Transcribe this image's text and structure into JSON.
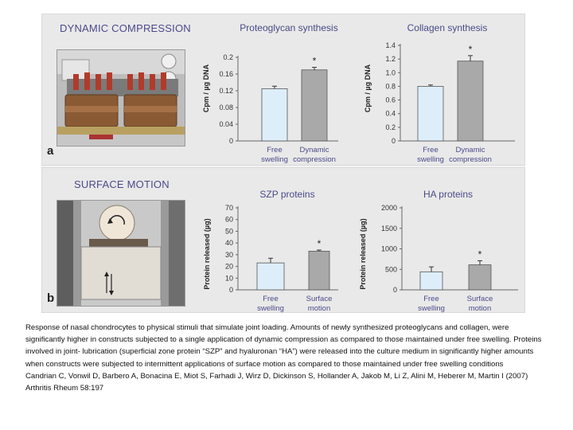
{
  "figure": {
    "panel_a": {
      "title": "DYNAMIC COMPRESSION",
      "letter": "a"
    },
    "panel_b": {
      "title": "SURFACE MOTION",
      "letter": "b"
    }
  },
  "colors": {
    "free_bar": "#ddeefa",
    "treated_bar": "#a9a9a9",
    "title_text": "#4a4a8a"
  },
  "chart_data": [
    {
      "id": "proteoglycan",
      "type": "bar",
      "title": "Proteoglycan synthesis",
      "ylabel": "Cpm / µg DNA",
      "xlabel": "",
      "ylim": [
        0,
        0.2
      ],
      "yticks": [
        "0",
        "0.04",
        "0.08",
        "0.12",
        "0.16",
        "0.2"
      ],
      "categories": [
        [
          "Free",
          "swelling"
        ],
        [
          "Dynamic",
          "compression"
        ]
      ],
      "values": [
        0.125,
        0.17
      ],
      "errors": [
        0.006,
        0.006
      ],
      "significance": [
        "",
        "*"
      ],
      "grid": false
    },
    {
      "id": "collagen",
      "type": "bar",
      "title": "Collagen synthesis",
      "ylabel": "Cpm / µg DNA",
      "xlabel": "",
      "ylim": [
        0,
        1.4
      ],
      "yticks": [
        "0",
        "0.2",
        "0.4",
        "0.6",
        "0.8",
        "1.0",
        "1.2",
        "1.4"
      ],
      "categories": [
        [
          "Free",
          "swelling"
        ],
        [
          "Dynamic",
          "compression"
        ]
      ],
      "values": [
        0.8,
        1.17
      ],
      "errors": [
        0.02,
        0.08
      ],
      "significance": [
        "",
        "*"
      ],
      "grid": false
    },
    {
      "id": "szp",
      "type": "bar",
      "title": "SZP proteins",
      "ylabel": "Protein released (µg)",
      "xlabel": "",
      "ylim": [
        0,
        70
      ],
      "yticks": [
        "0",
        "10",
        "20",
        "30",
        "40",
        "50",
        "60",
        "70"
      ],
      "categories": [
        [
          "Free",
          "swelling"
        ],
        [
          "Surface",
          "motion"
        ]
      ],
      "values": [
        23,
        33
      ],
      "errors": [
        4,
        1
      ],
      "significance": [
        "",
        "*"
      ],
      "grid": false
    },
    {
      "id": "ha",
      "type": "bar",
      "title": "HA proteins",
      "ylabel": "Protein released (µg)",
      "xlabel": "",
      "ylim": [
        0,
        2000
      ],
      "yticks": [
        "0",
        "500",
        "1000",
        "1500",
        "2000"
      ],
      "categories": [
        [
          "Free",
          "swelling"
        ],
        [
          "Surface",
          "motion"
        ]
      ],
      "values": [
        440,
        610
      ],
      "errors": [
        120,
        100
      ],
      "significance": [
        "",
        "*"
      ],
      "grid": false
    }
  ],
  "caption": {
    "text": "Response of nasal chondrocytes to physical stimuli that simulate joint loading. Amounts of newly synthesized proteoglycans and collagen, were significantly higher in constructs subjected to a single application of dynamic compression as compared to those maintained under free swelling. Proteins involved in joint- lubrication (superficial zone protein “SZP” and hyaluronan “HA”) were released into the culture medium in significantly higher amounts when constructs were subjected to intermittent applications of surface motion as compared to those maintained under free swelling conditions",
    "citation": " Candrian C, Vonwil D, Barbero A, Bonacina E, Miot S, Farhadi J, Wirz D, Dickinson S, Hollander A, Jakob M, Li Z, Alini M, Heberer M, Martin I (2007) Arthritis Rheum 58:197"
  }
}
